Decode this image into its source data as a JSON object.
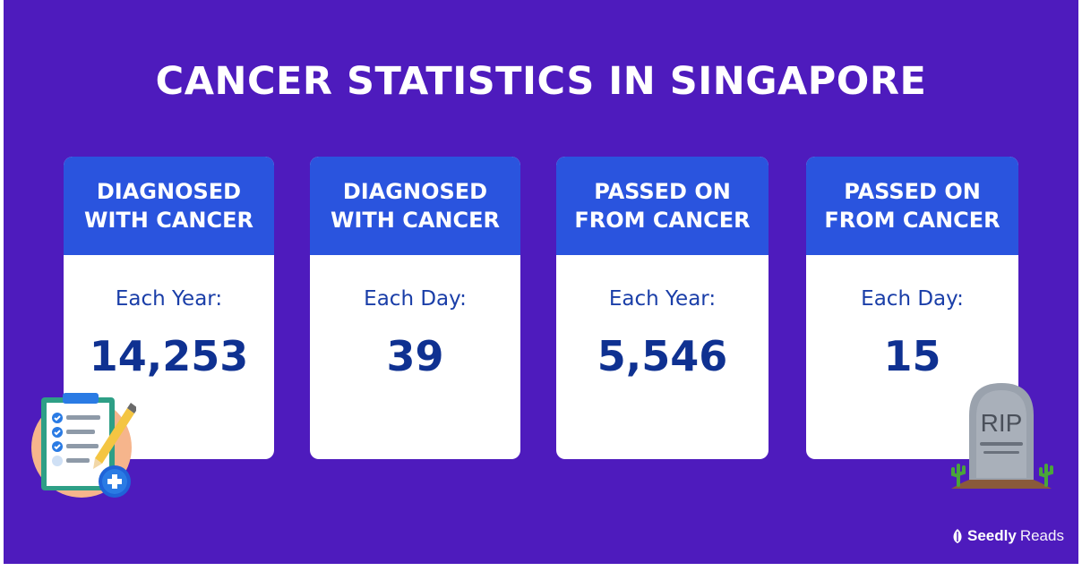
{
  "title": "CANCER STATISTICS IN SINGAPORE",
  "cards": [
    {
      "heading": "DIAGNOSED\nWITH CANCER",
      "period": "Each Year:",
      "value": "14,253"
    },
    {
      "heading": "DIAGNOSED\nWITH CANCER",
      "period": "Each Day:",
      "value": "39"
    },
    {
      "heading": "PASSED ON\nFROM CANCER",
      "period": "Each Year:",
      "value": "5,546"
    },
    {
      "heading": "PASSED ON\nFROM CANCER",
      "period": "Each Day:",
      "value": "15"
    }
  ],
  "tombstone_text": "RIP",
  "brand": {
    "part1": "Seedly",
    "part2": "Reads",
    "icon": "seed-icon"
  },
  "illustrations": {
    "left": "medical-clipboard-icon",
    "right": "tombstone-icon"
  },
  "colors": {
    "background": "#4e1bbd",
    "card_header": "#2a54de",
    "card_body": "#ffffff",
    "value_text": "#0f3191",
    "period_text": "#1a3ea8"
  }
}
